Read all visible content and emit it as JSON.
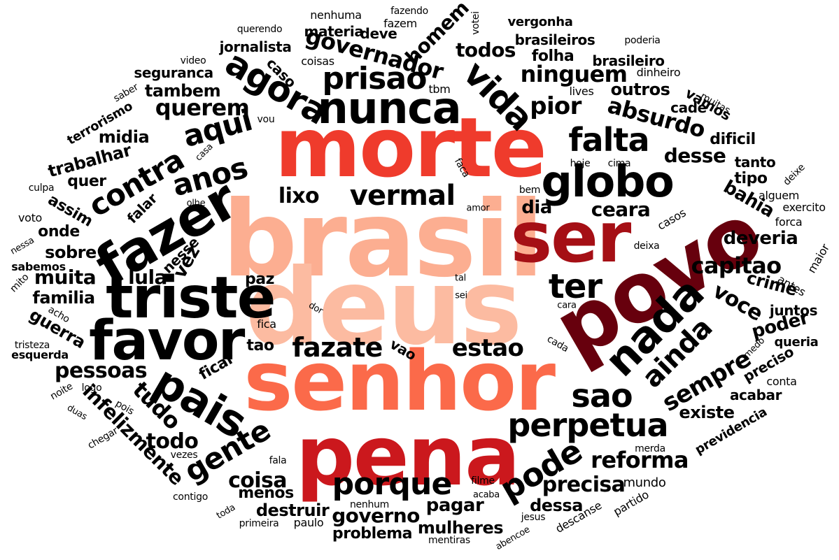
{
  "colors": {
    "background": "#ffffff",
    "brasil": "#fcae91",
    "deus": "#fcbba1",
    "senhor": "#fb6a4a",
    "morte": "#ef3b2c",
    "pena": "#cb181d",
    "ser": "#a50f15",
    "povo": "#67000d",
    "default": "#000000"
  },
  "words": [
    "brasil",
    "deus",
    "senhor",
    "morte",
    "pena",
    "povo",
    "ser",
    "triste",
    "favor",
    "fazer",
    "nunca",
    "globo",
    "pais",
    "nada",
    "agora",
    "vida",
    "prisao",
    "aqui",
    "anos",
    "contra",
    "falta",
    "porque",
    "perpetua",
    "sao",
    "vermal",
    "pode",
    "ter",
    "ainda",
    "gente",
    "fazate",
    "estao",
    "sempre",
    "governador",
    "ninguem",
    "pior",
    "absurdo",
    "querem",
    "tudo",
    "pessoas",
    "todos",
    "lixo",
    "capitao",
    "voce",
    "reforma",
    "precisa",
    "coisa",
    "todo",
    "governo",
    "infelizmente",
    "desse",
    "ceara",
    "dia",
    "muita",
    "lula",
    "vez",
    "bahia",
    "crime",
    "deveria",
    "poder",
    "mulheres",
    "pagar",
    "dessa",
    "destruir",
    "menos",
    "problema",
    "homem",
    "outros",
    "tambem",
    "midia",
    "trabalhar",
    "familia",
    "guerra",
    "sobre",
    "onde",
    "assim",
    "quer",
    "falar",
    "nesse",
    "paz",
    "tao",
    "fica",
    "ficar",
    "vao",
    "existe",
    "acabar",
    "preciso",
    "conta",
    "queria",
    "juntos",
    "antes",
    "maior",
    "forca",
    "exercito",
    "alguem",
    "deixe",
    "tanto",
    "tipo",
    "dificil",
    "vamos",
    "cade",
    "muitas",
    "lives",
    "dinheiro",
    "brasileiro",
    "poderia",
    "brasileiros",
    "folha",
    "vergonha",
    "votei",
    "fazem",
    "fazendo",
    "nenhuma",
    "materia",
    "deve",
    "querendo",
    "jornalista",
    "coisas",
    "video",
    "seguranca",
    "caso",
    "saber",
    "terrorismo",
    "vou",
    "casa",
    "culpa",
    "voto",
    "nessa",
    "sabemos",
    "mito",
    "acho",
    "tristeza",
    "esquerda",
    "noite",
    "logo",
    "duas",
    "pois",
    "chegar",
    "vezes",
    "contigo",
    "toda",
    "primeira",
    "paulo",
    "nenhum",
    "mentiras",
    "abencoe",
    "jesus",
    "descanse",
    "partido",
    "mundo",
    "merda",
    "filme",
    "acaba",
    "fala",
    "cada",
    "medo",
    "cara",
    "dor",
    "tal",
    "sei",
    "bem",
    "amor",
    "olhe",
    "hoje",
    "cima",
    "casos",
    "deixa",
    "faca",
    "tbm",
    "previdencia"
  ]
}
